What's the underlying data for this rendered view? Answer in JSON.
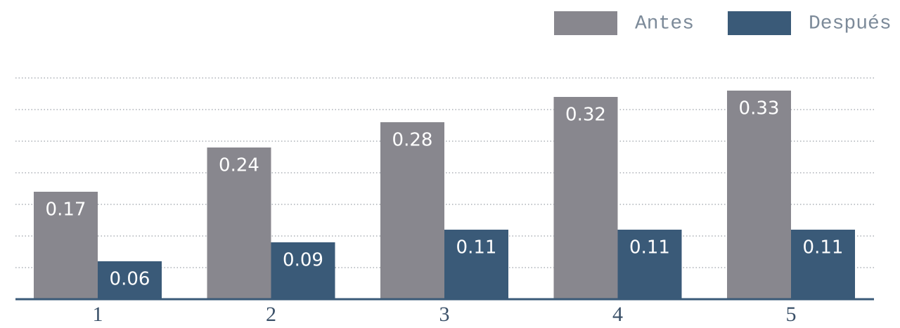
{
  "chart_data": {
    "type": "bar",
    "categories": [
      "1",
      "2",
      "3",
      "4",
      "5"
    ],
    "series": [
      {
        "name": "Antes",
        "color": "#88878e",
        "values": [
          0.17,
          0.24,
          0.28,
          0.32,
          0.33
        ]
      },
      {
        "name": "Después",
        "color": "#3a5a78",
        "values": [
          0.06,
          0.09,
          0.11,
          0.11,
          0.11
        ]
      }
    ],
    "ylim": [
      0,
      0.35
    ],
    "yticks": [
      0.05,
      0.1,
      0.15,
      0.2,
      0.25,
      0.3,
      0.35
    ],
    "grid": true,
    "legend": "top-right"
  }
}
